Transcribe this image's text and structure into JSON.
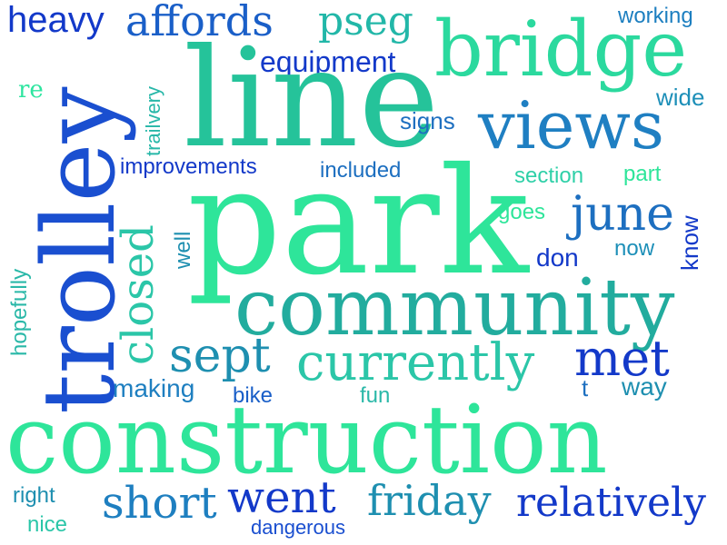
{
  "words": {
    "heavy": "heavy",
    "affords": "affords",
    "pseg": "pseg",
    "working": "working",
    "bridge": "bridge",
    "equipment": "equipment",
    "re": "re",
    "trailvery": "trailvery",
    "line": "line",
    "wide": "wide",
    "signs": "signs",
    "views": "views",
    "trolley": "trolley",
    "improvements": "improvements",
    "included": "included",
    "section": "section",
    "part": "part",
    "park": "park",
    "goes": "goes",
    "june": "june",
    "know": "know",
    "well": "well",
    "now": "now",
    "closed": "closed",
    "hopefully": "hopefully",
    "don": "don",
    "community": "community",
    "sept": "sept",
    "currently": "currently",
    "met": "met",
    "making": "making",
    "bike": "bike",
    "fun": "fun",
    "t": "t",
    "way": "way",
    "construction": "construction",
    "right": "right",
    "short": "short",
    "went": "went",
    "friday": "friday",
    "relatively": "relatively",
    "nice": "nice",
    "dangerous": "dangerous"
  },
  "colors": {
    "deep_blue": "#1339c9",
    "royal_blue": "#1a4fd0",
    "steel_blue": "#1d6fc0",
    "teal_blue": "#1e8fb0",
    "teal": "#20a8a0",
    "sea_green": "#28c79a",
    "mint": "#2ee59a",
    "aqua": "#24d6b0"
  }
}
